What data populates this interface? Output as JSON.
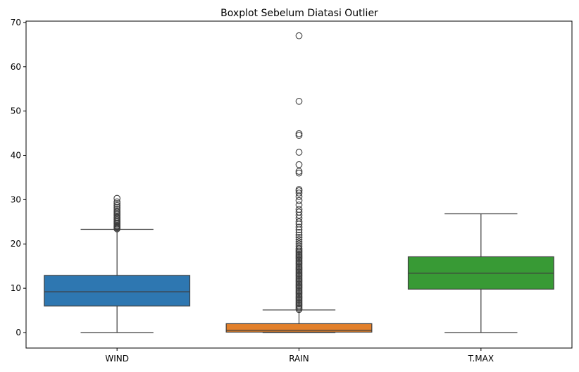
{
  "chart_data": {
    "type": "box",
    "title": "Boxplot Sebelum Diatasi Outlier",
    "xlabel": "",
    "ylabel": "",
    "ylim": [
      -3.5,
      70.3
    ],
    "yticks": [
      0,
      10,
      20,
      30,
      40,
      50,
      60,
      70
    ],
    "ytick_labels": [
      "0",
      "10",
      "20",
      "30",
      "40",
      "50",
      "60",
      "70"
    ],
    "categories": [
      "WIND",
      "RAIN",
      "T.MAX"
    ],
    "grid": false,
    "series": [
      {
        "category": "WIND",
        "color": "#2e77b1",
        "whisker_low": 0,
        "q1": 6.0,
        "median": 9.2,
        "q3": 12.9,
        "whisker_high": 23.3,
        "outliers": [
          23.4,
          23.6,
          23.8,
          24.0,
          24.2,
          24.5,
          24.7,
          25.0,
          25.2,
          25.5,
          25.8,
          26.0,
          26.3,
          26.6,
          26.9,
          27.2,
          27.5,
          27.9,
          28.3,
          28.7,
          29.1,
          29.5,
          30.3
        ]
      },
      {
        "category": "RAIN",
        "color": "#e2802b",
        "whisker_low": 0,
        "q1": 0.1,
        "median": 0.5,
        "q3": 2.0,
        "whisker_high": 5.1,
        "outliers": [
          5.2,
          5.5,
          5.8,
          6.1,
          6.4,
          6.7,
          7.0,
          7.3,
          7.6,
          7.9,
          8.2,
          8.5,
          8.8,
          9.1,
          9.4,
          9.7,
          10.0,
          10.3,
          10.6,
          10.9,
          11.2,
          11.5,
          11.8,
          12.1,
          12.4,
          12.7,
          13.0,
          13.3,
          13.6,
          13.9,
          14.2,
          14.5,
          14.8,
          15.1,
          15.4,
          15.7,
          16.0,
          16.3,
          16.6,
          16.9,
          17.2,
          17.5,
          17.8,
          18.1,
          18.4,
          18.7,
          19.0,
          19.5,
          20.0,
          20.5,
          21.0,
          21.5,
          22.0,
          22.6,
          23.2,
          23.8,
          24.5,
          25.0,
          25.8,
          26.5,
          27.2,
          27.8,
          28.8,
          29.8,
          30.7,
          31.5,
          32.0,
          32.3,
          36.0,
          36.4,
          37.9,
          40.7,
          44.5,
          44.9,
          52.2,
          67.0
        ]
      },
      {
        "category": "T.MAX",
        "color": "#389a35",
        "whisker_low": 0,
        "q1": 9.8,
        "median": 13.4,
        "q3": 17.1,
        "whisker_high": 26.8,
        "outliers": []
      }
    ]
  }
}
